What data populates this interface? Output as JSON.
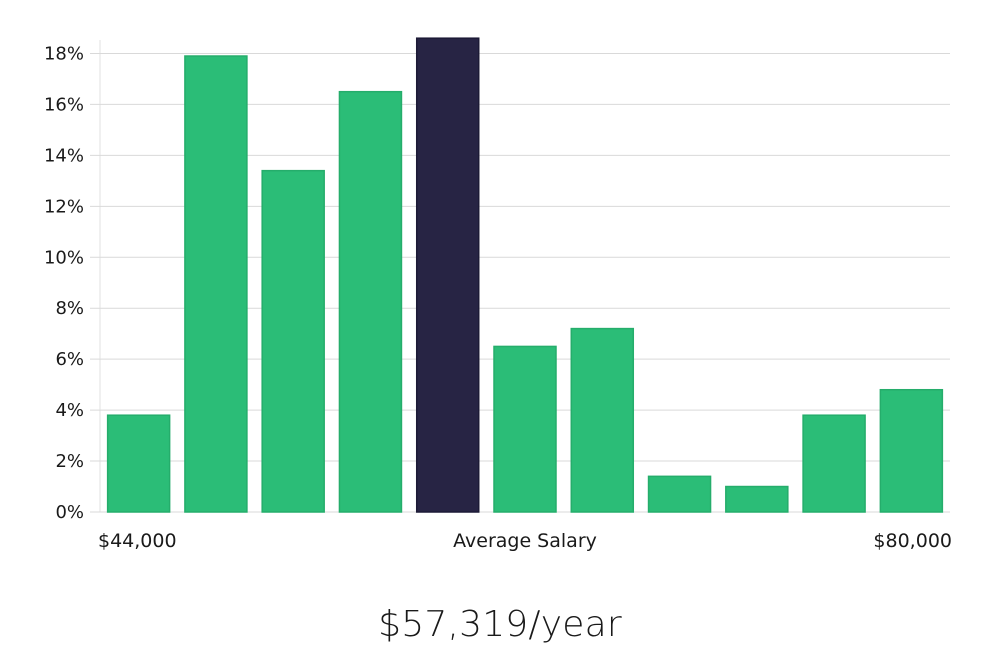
{
  "chart_data": {
    "type": "bar",
    "y_unit": "%",
    "values": [
      3.8,
      17.9,
      13.4,
      16.5,
      18.6,
      6.5,
      7.2,
      1.4,
      1.0,
      3.8,
      4.8
    ],
    "highlight_index": 4,
    "ylim": [
      0,
      19
    ],
    "y_ticks": [
      0,
      2,
      4,
      6,
      8,
      10,
      12,
      14,
      16,
      18
    ],
    "y_tick_labels": [
      "0%",
      "2%",
      "4%",
      "6%",
      "8%",
      "10%",
      "12%",
      "14%",
      "16%",
      "18%"
    ],
    "x_labels": {
      "left": "$44,000",
      "center": "Average Salary",
      "right": "$80,000"
    },
    "grid": true,
    "colors": {
      "bar": "#2bbd77",
      "highlight": "#272444",
      "grid": "#d9d9d9"
    }
  },
  "summary": {
    "average_salary": "$57,319/year"
  }
}
